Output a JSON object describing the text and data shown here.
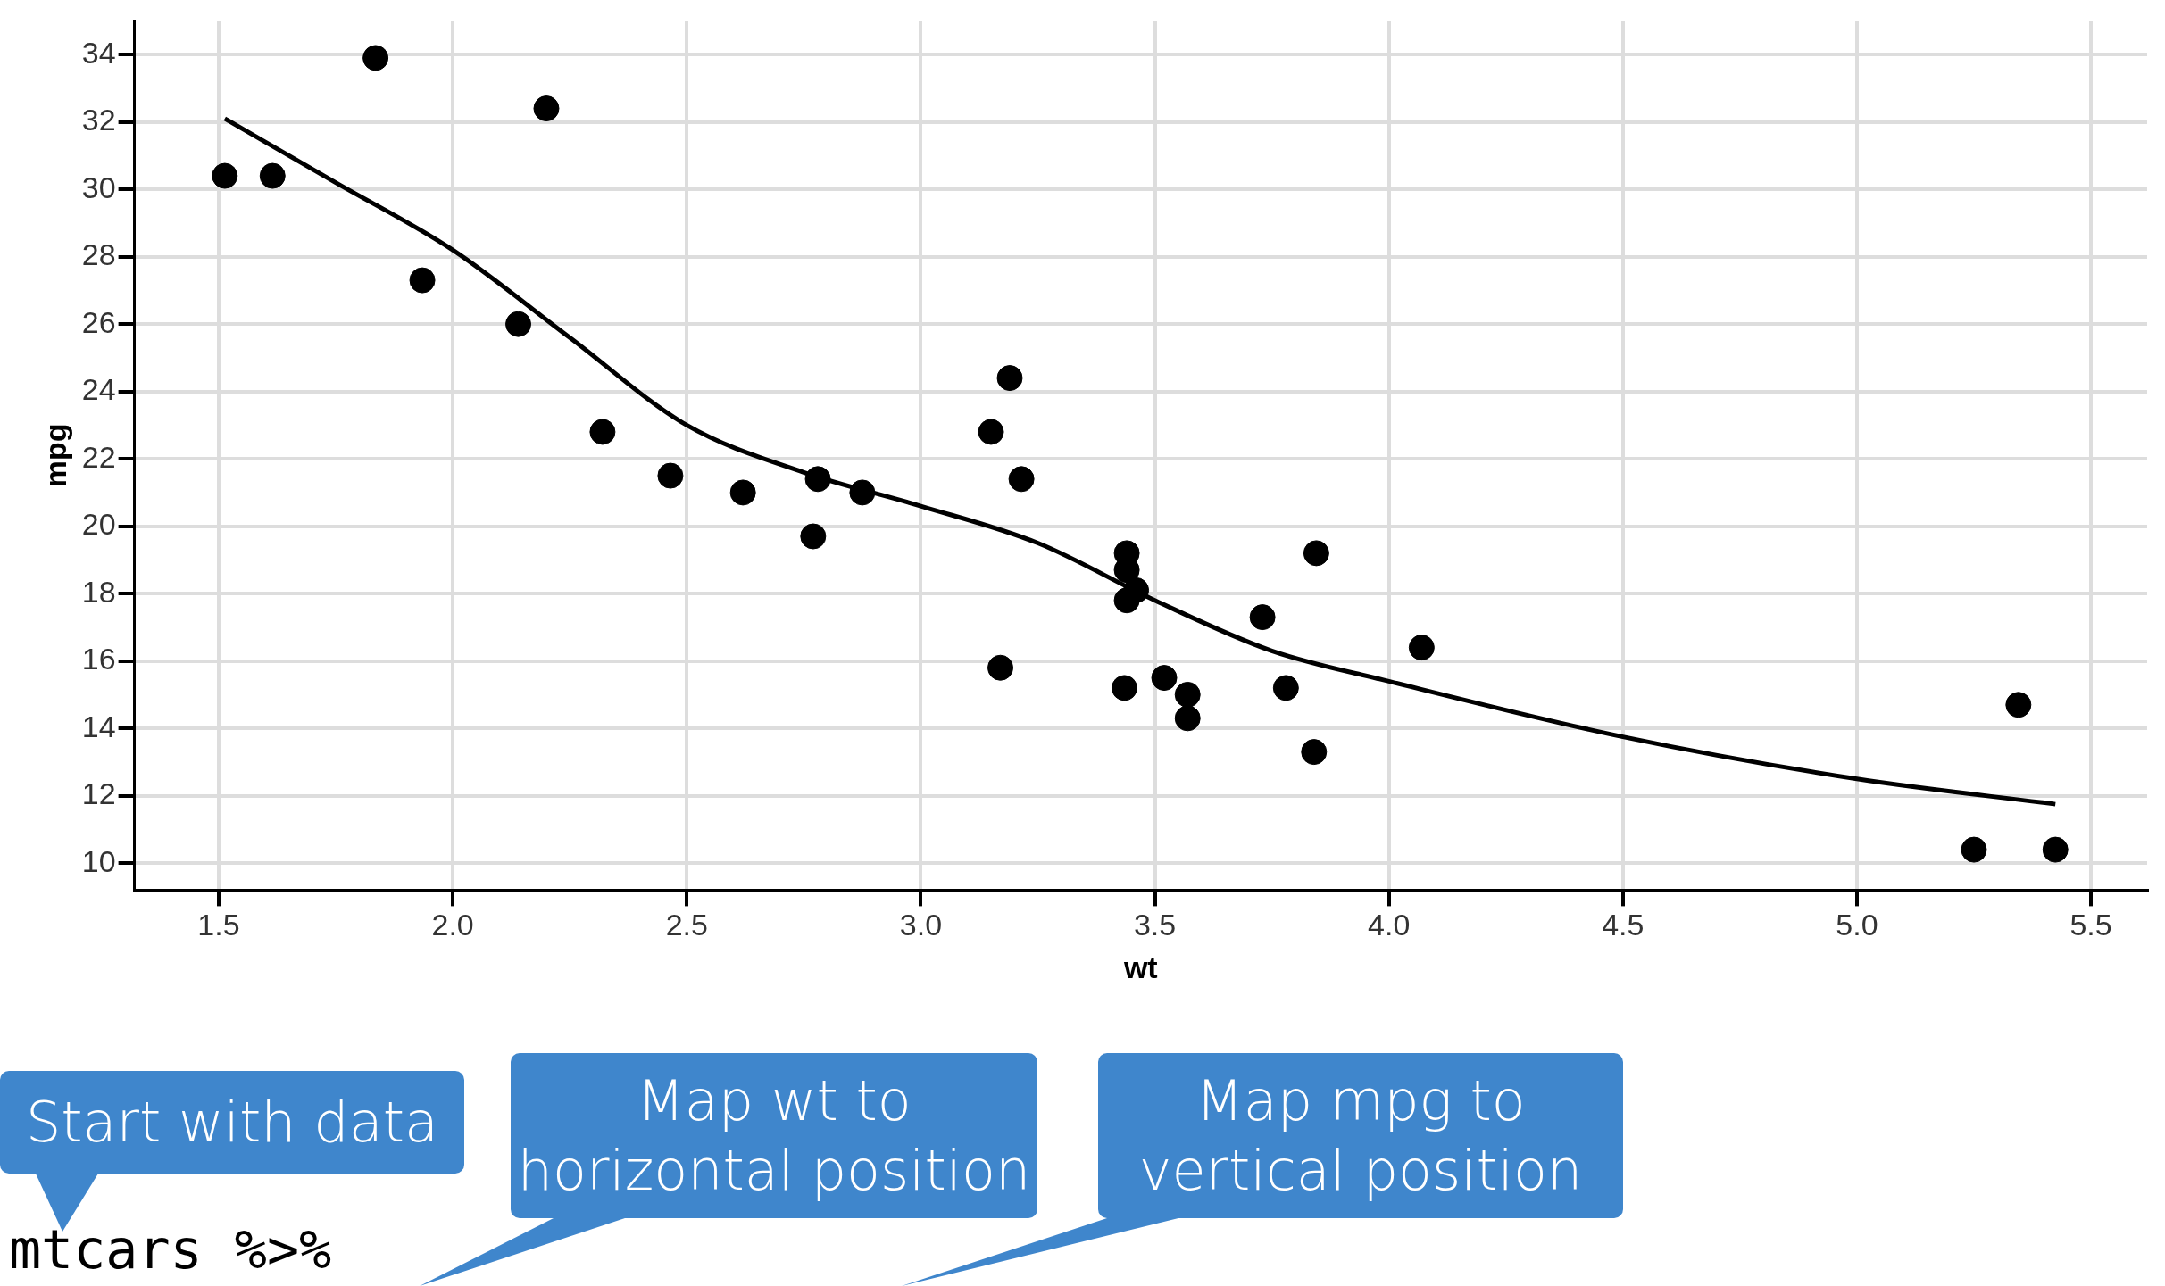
{
  "chart_data": {
    "type": "scatter",
    "xlabel": "wt",
    "ylabel": "mpg",
    "xlim": [
      1.32,
      5.62
    ],
    "ylim": [
      9.2,
      35
    ],
    "xticks": [
      1.5,
      {
        "value": 2,
        "label": "2.0"
      },
      2.5,
      {
        "value": 3,
        "label": "3.0"
      },
      3.5,
      {
        "value": 4,
        "label": "4.0"
      },
      4.5,
      {
        "value": 5,
        "label": "5.0"
      },
      5.5
    ],
    "yticks": [
      10,
      12,
      14,
      16,
      18,
      20,
      22,
      24,
      26,
      28,
      30,
      32,
      34
    ],
    "grid": true,
    "legend": false,
    "marker": "circle",
    "series": [
      {
        "type": "scatter",
        "color": "#000000",
        "x": [
          2.62,
          2.875,
          2.32,
          3.215,
          3.44,
          3.46,
          3.57,
          3.19,
          3.15,
          3.44,
          3.44,
          4.07,
          3.73,
          3.78,
          5.25,
          5.424,
          5.345,
          2.2,
          1.615,
          1.835,
          2.465,
          3.52,
          3.435,
          3.84,
          3.845,
          1.935,
          2.14,
          1.513,
          3.17,
          2.77,
          3.57,
          2.78
        ],
        "values": [
          21.0,
          21.0,
          22.8,
          21.4,
          18.7,
          18.1,
          14.3,
          24.4,
          22.8,
          19.2,
          17.8,
          16.4,
          17.3,
          15.2,
          10.4,
          10.4,
          14.7,
          32.4,
          30.4,
          33.9,
          21.5,
          15.5,
          15.2,
          13.3,
          19.2,
          27.3,
          26.0,
          30.4,
          15.8,
          19.7,
          15.0,
          21.4
        ]
      },
      {
        "type": "line",
        "color": "#000000",
        "marker": "none",
        "x": [
          1.513,
          1.75,
          2.0,
          2.25,
          2.5,
          2.75,
          3.0,
          3.25,
          3.5,
          3.75,
          4.0,
          4.5,
          5.0,
          5.424
        ],
        "values": [
          32.1,
          30.2,
          28.2,
          25.6,
          23.0,
          21.6,
          20.6,
          19.5,
          17.8,
          16.3,
          15.4,
          13.75,
          12.5,
          11.75
        ]
      }
    ],
    "annotations": [
      "Start with data",
      "Map wt to horizontal position",
      "Map mpg to vertical position",
      "mtcars %>%"
    ]
  }
}
